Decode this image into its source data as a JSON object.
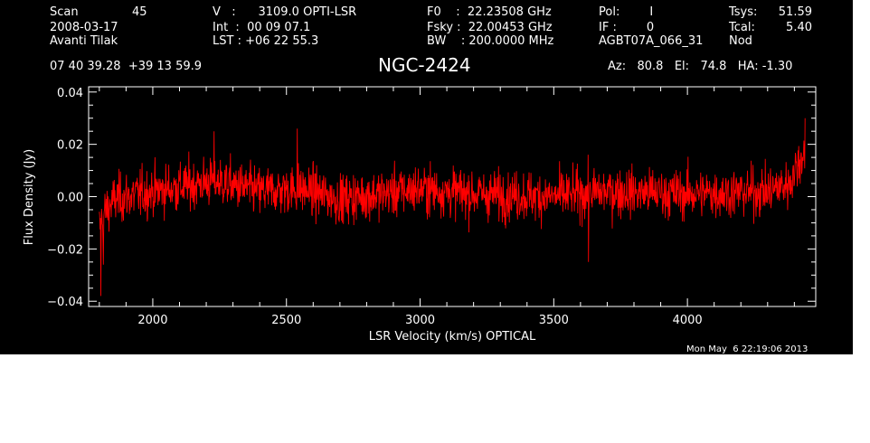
{
  "header": {
    "col1": [
      "Scan",
      "2008-03-17",
      "Avanti Tilak"
    ],
    "scan_number": "45",
    "col2": [
      "V   :      3109.0 OPTI-LSR",
      "Int  :  00 09 07.1",
      "LST : +06 22 55.3"
    ],
    "col3": [
      "F0    :  22.23508 GHz",
      "Fsky :  22.00453 GHz",
      "BW    : 200.0000 MHz"
    ],
    "col4": [
      "Pol:        I",
      "IF :        0",
      "AGBT07A_066_31"
    ],
    "col5_labels": [
      "Tsys:",
      "Tcal:",
      "Nod"
    ],
    "col5_values": [
      "51.59",
      "5.40",
      ""
    ],
    "coords": "07 40 39.28  +39 13 59.9",
    "pointing": "Az:   80.8   El:   74.8   HA: -1.30",
    "timestamp": "Mon May  6 22:19:06 2013"
  },
  "chart_data": {
    "type": "line",
    "title": "NGC-2424",
    "xlabel": "LSR Velocity (km/s) OPTICAL",
    "ylabel": "Flux Density (Jy)",
    "xlim": [
      1760,
      4480
    ],
    "ylim": [
      -0.042,
      0.042
    ],
    "xticks": [
      2000,
      2500,
      3000,
      3500,
      4000
    ],
    "xtick_labels": [
      "2000",
      "2500",
      "3000",
      "3500",
      "4000"
    ],
    "yticks": [
      -0.04,
      -0.02,
      0.0,
      0.02,
      0.04
    ],
    "ytick_labels": [
      "−0.04",
      "−0.02",
      "0.00",
      "0.02",
      "0.04"
    ],
    "grid": false,
    "line_color": "#ff0000",
    "series": [
      {
        "x_start": 1800,
        "x_end": 4440,
        "noise_rms": 0.0085,
        "baseline_points": [
          {
            "x": 1800,
            "y": -0.012
          },
          {
            "x": 1820,
            "y": -0.006
          },
          {
            "x": 1860,
            "y": -0.001
          },
          {
            "x": 2000,
            "y": 0.002
          },
          {
            "x": 2230,
            "y": 0.006
          },
          {
            "x": 2400,
            "y": 0.002
          },
          {
            "x": 2550,
            "y": 0.003
          },
          {
            "x": 2700,
            "y": -0.001
          },
          {
            "x": 3000,
            "y": 0.003
          },
          {
            "x": 3200,
            "y": 0.001
          },
          {
            "x": 3500,
            "y": 0.0
          },
          {
            "x": 3700,
            "y": 0.002
          },
          {
            "x": 4000,
            "y": 0.001
          },
          {
            "x": 4300,
            "y": 0.002
          },
          {
            "x": 4380,
            "y": 0.005
          },
          {
            "x": 4440,
            "y": 0.018
          }
        ],
        "extremes": [
          {
            "x": 1805,
            "y": -0.038
          },
          {
            "x": 1815,
            "y": -0.026
          },
          {
            "x": 2230,
            "y": 0.025
          },
          {
            "x": 2540,
            "y": 0.026
          },
          {
            "x": 3630,
            "y": -0.025
          },
          {
            "x": 4440,
            "y": 0.03
          }
        ]
      }
    ]
  }
}
